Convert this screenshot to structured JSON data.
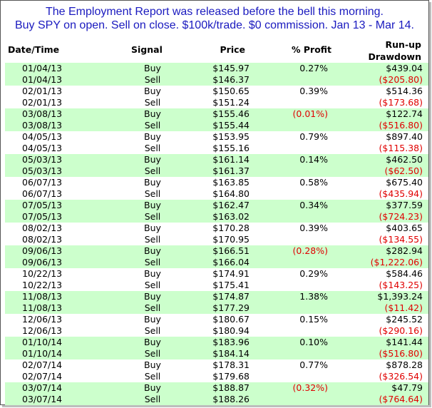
{
  "heading": {
    "line1": "The Employment Report was released before the bell this morning.",
    "line2": "Buy SPY on open. Sell on close. $100k/trade. $0 commission. Jan 13 - Mar 14."
  },
  "columns": {
    "date": "Date/Time",
    "signal": "Signal",
    "price": "Price",
    "profit": "% Profit",
    "runup": "Run-up",
    "drawdown": "Drawdown"
  },
  "trades": [
    {
      "buy_date": "01/04/13",
      "buy_signal": "Buy",
      "buy_price": "$145.97",
      "profit": "0.27%",
      "profit_negative": false,
      "runup": "$439.04",
      "sell_date": "01/04/13",
      "sell_signal": "Sell",
      "sell_price": "$146.37",
      "drawdown": "($205.80)"
    },
    {
      "buy_date": "02/01/13",
      "buy_signal": "Buy",
      "buy_price": "$150.65",
      "profit": "0.39%",
      "profit_negative": false,
      "runup": "$514.36",
      "sell_date": "02/01/13",
      "sell_signal": "Sell",
      "sell_price": "$151.24",
      "drawdown": "($173.68)"
    },
    {
      "buy_date": "03/08/13",
      "buy_signal": "Buy",
      "buy_price": "$155.46",
      "profit": "(0.01%)",
      "profit_negative": true,
      "runup": "$122.74",
      "sell_date": "03/08/13",
      "sell_signal": "Sell",
      "sell_price": "$155.44",
      "drawdown": "($516.80)"
    },
    {
      "buy_date": "04/05/13",
      "buy_signal": "Buy",
      "buy_price": "$153.95",
      "profit": "0.79%",
      "profit_negative": false,
      "runup": "$897.40",
      "sell_date": "04/05/13",
      "sell_signal": "Sell",
      "sell_price": "$155.16",
      "drawdown": "($115.38)"
    },
    {
      "buy_date": "05/03/13",
      "buy_signal": "Buy",
      "buy_price": "$161.14",
      "profit": "0.14%",
      "profit_negative": false,
      "runup": "$462.50",
      "sell_date": "05/03/13",
      "sell_signal": "Sell",
      "sell_price": "$161.37",
      "drawdown": "($62.50)"
    },
    {
      "buy_date": "06/07/13",
      "buy_signal": "Buy",
      "buy_price": "$163.85",
      "profit": "0.58%",
      "profit_negative": false,
      "runup": "$675.40",
      "sell_date": "06/07/13",
      "sell_signal": "Sell",
      "sell_price": "$164.80",
      "drawdown": "($435.94)"
    },
    {
      "buy_date": "07/05/13",
      "buy_signal": "Buy",
      "buy_price": "$162.47",
      "profit": "0.34%",
      "profit_negative": false,
      "runup": "$377.59",
      "sell_date": "07/05/13",
      "sell_signal": "Sell",
      "sell_price": "$163.02",
      "drawdown": "($724.23)"
    },
    {
      "buy_date": "08/02/13",
      "buy_signal": "Buy",
      "buy_price": "$170.28",
      "profit": "0.39%",
      "profit_negative": false,
      "runup": "$403.65",
      "sell_date": "08/02/13",
      "sell_signal": "Sell",
      "sell_price": "$170.95",
      "drawdown": "($134.55)"
    },
    {
      "buy_date": "09/06/13",
      "buy_signal": "Buy",
      "buy_price": "$166.51",
      "profit": "(0.28%)",
      "profit_negative": true,
      "runup": "$282.94",
      "sell_date": "09/06/13",
      "sell_signal": "Sell",
      "sell_price": "$166.04",
      "drawdown": "($1,222.06)"
    },
    {
      "buy_date": "10/22/13",
      "buy_signal": "Buy",
      "buy_price": "$174.91",
      "profit": "0.29%",
      "profit_negative": false,
      "runup": "$584.46",
      "sell_date": "10/22/13",
      "sell_signal": "Sell",
      "sell_price": "$175.41",
      "drawdown": "($143.25)"
    },
    {
      "buy_date": "11/08/13",
      "buy_signal": "Buy",
      "buy_price": "$174.87",
      "profit": "1.38%",
      "profit_negative": false,
      "runup": "$1,393.24",
      "sell_date": "11/08/13",
      "sell_signal": "Sell",
      "sell_price": "$177.29",
      "drawdown": "($11.42)"
    },
    {
      "buy_date": "12/06/13",
      "buy_signal": "Buy",
      "buy_price": "$180.67",
      "profit": "0.15%",
      "profit_negative": false,
      "runup": "$245.52",
      "sell_date": "12/06/13",
      "sell_signal": "Sell",
      "sell_price": "$180.94",
      "drawdown": "($290.16)"
    },
    {
      "buy_date": "01/10/14",
      "buy_signal": "Buy",
      "buy_price": "$183.96",
      "profit": "0.10%",
      "profit_negative": false,
      "runup": "$141.44",
      "sell_date": "01/10/14",
      "sell_signal": "Sell",
      "sell_price": "$184.14",
      "drawdown": "($516.80)"
    },
    {
      "buy_date": "02/07/14",
      "buy_signal": "Buy",
      "buy_price": "$178.31",
      "profit": "0.77%",
      "profit_negative": false,
      "runup": "$878.28",
      "sell_date": "02/07/14",
      "sell_signal": "Sell",
      "sell_price": "$179.68",
      "drawdown": "($326.54)"
    },
    {
      "buy_date": "03/07/14",
      "buy_signal": "Buy",
      "buy_price": "$188.87",
      "profit": "(0.32%)",
      "profit_negative": true,
      "runup": "$47.79",
      "sell_date": "03/07/14",
      "sell_signal": "Sell",
      "sell_price": "$188.26",
      "drawdown": "($764.64)"
    }
  ],
  "colors": {
    "heading": "#1a1abf",
    "shaded_row": "#ccffcc",
    "negative": "#e00000",
    "border": "#555555"
  }
}
